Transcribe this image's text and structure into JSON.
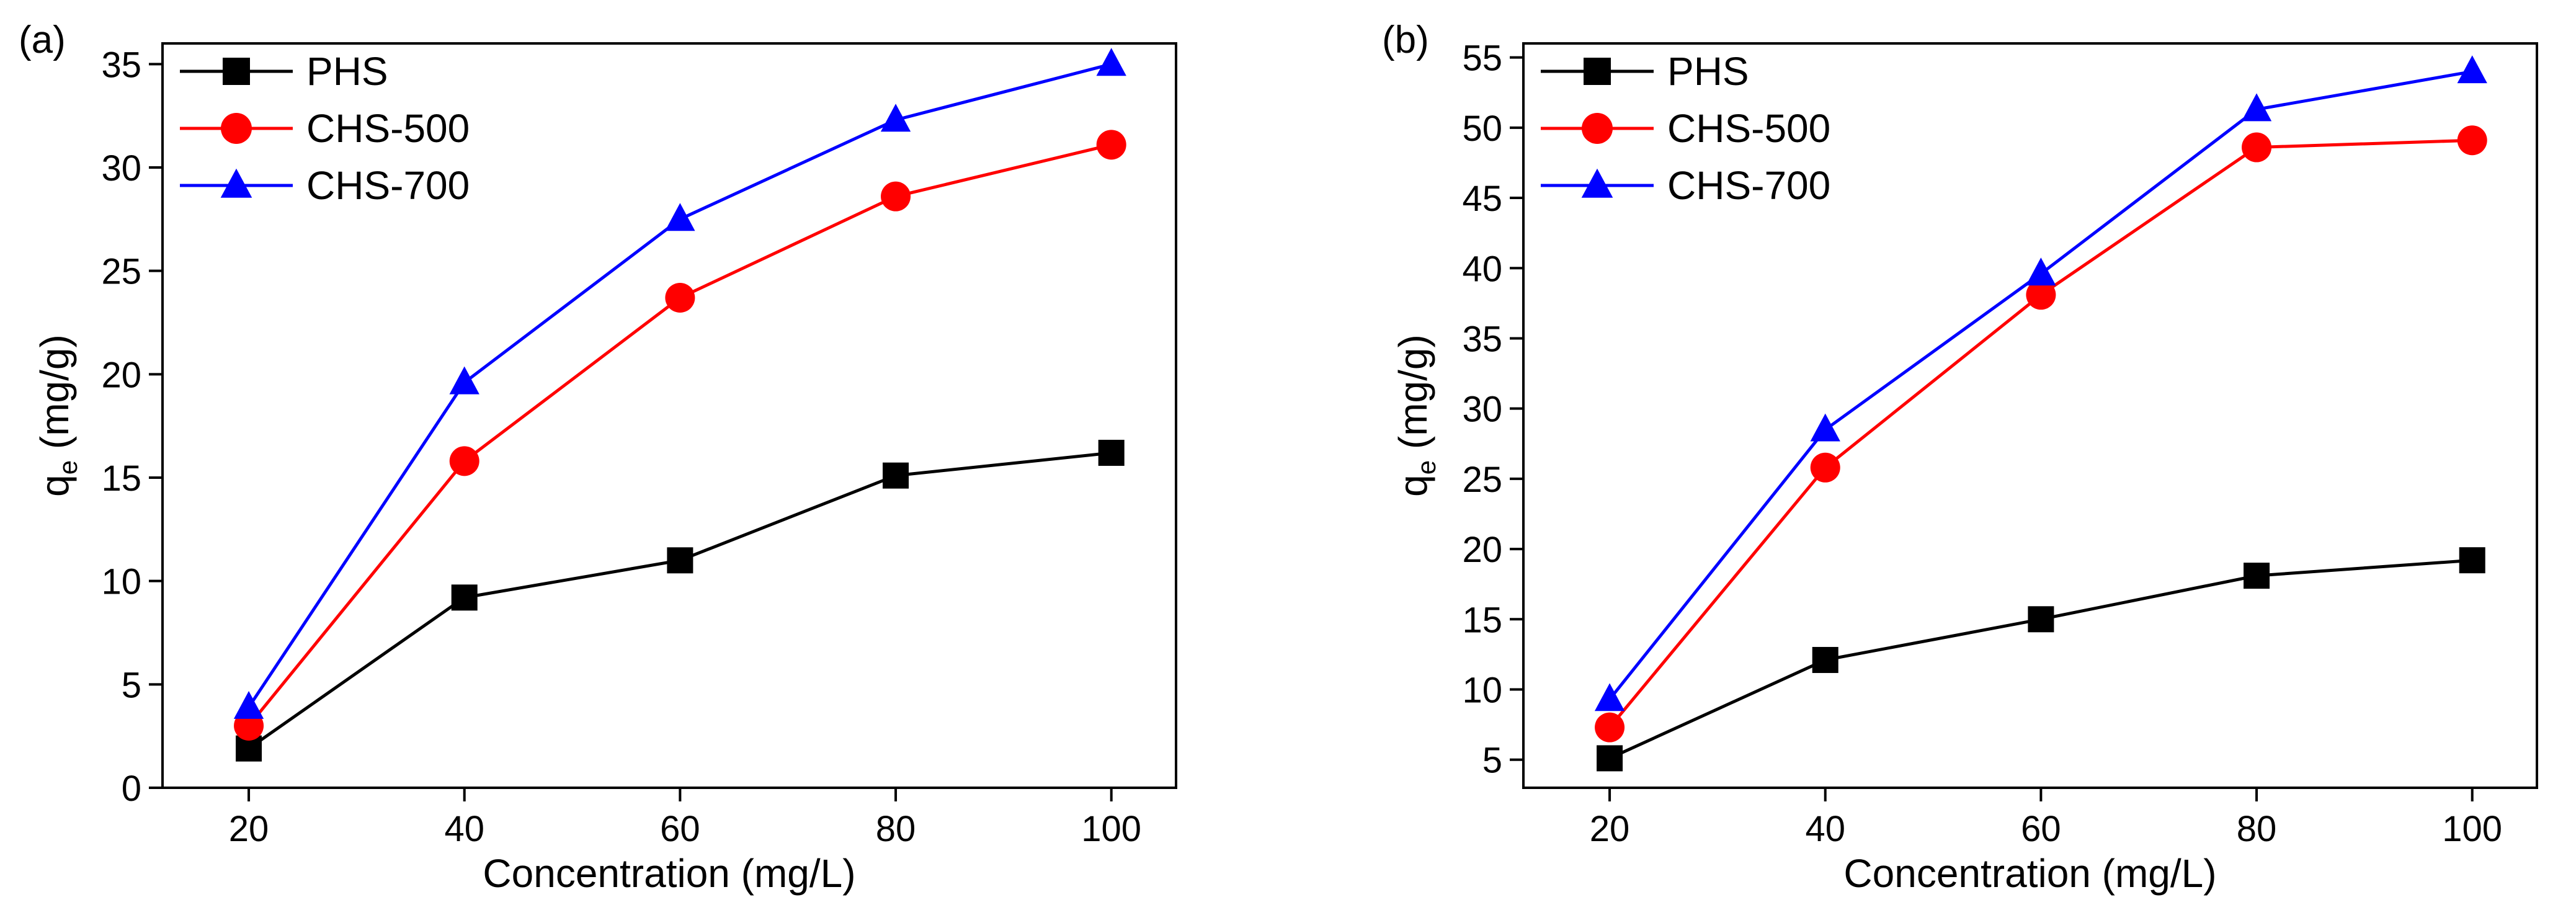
{
  "colors": {
    "PHS": "#000000",
    "CHS-500": "#ff0000",
    "CHS-700": "#0000ff",
    "axis": "#000000",
    "background": "#ffffff"
  },
  "chart_data": [
    {
      "type": "line",
      "panel_label": "(a)",
      "title": "",
      "xlabel": "Concentration (mg/L)",
      "ylabel_main": "q",
      "ylabel_sub": "e",
      "ylabel_unit": " (mg/g)",
      "xlim": [
        12,
        106
      ],
      "ylim": [
        0,
        36
      ],
      "xticks": [
        20,
        40,
        60,
        80,
        100
      ],
      "yticks": [
        0,
        5,
        10,
        15,
        20,
        25,
        30,
        35
      ],
      "legend_position": "top-left",
      "grid": false,
      "x": [
        20,
        40,
        60,
        80,
        100
      ],
      "series": [
        {
          "name": "PHS",
          "marker": "square",
          "color_key": "PHS",
          "values": [
            1.9,
            9.2,
            11.0,
            15.1,
            16.2
          ]
        },
        {
          "name": "CHS-500",
          "marker": "circle",
          "color_key": "CHS-500",
          "values": [
            3.0,
            15.8,
            23.7,
            28.6,
            31.1
          ]
        },
        {
          "name": "CHS-700",
          "marker": "triangle",
          "color_key": "CHS-700",
          "values": [
            3.9,
            19.6,
            27.5,
            32.3,
            35.0
          ]
        }
      ]
    },
    {
      "type": "line",
      "panel_label": "(b)",
      "title": "",
      "xlabel": "Concentration (mg/L)",
      "ylabel_main": "q",
      "ylabel_sub": "e",
      "ylabel_unit": " (mg/g)",
      "xlim": [
        12,
        106
      ],
      "ylim": [
        3,
        56
      ],
      "xticks": [
        20,
        40,
        60,
        80,
        100
      ],
      "yticks": [
        5,
        10,
        15,
        20,
        25,
        30,
        35,
        40,
        45,
        50,
        55
      ],
      "legend_position": "top-left",
      "grid": false,
      "x": [
        20,
        40,
        60,
        80,
        100
      ],
      "series": [
        {
          "name": "PHS",
          "marker": "square",
          "color_key": "PHS",
          "values": [
            5.1,
            12.1,
            15.0,
            18.1,
            19.2
          ]
        },
        {
          "name": "CHS-500",
          "marker": "circle",
          "color_key": "CHS-500",
          "values": [
            7.3,
            25.8,
            38.1,
            48.6,
            49.1
          ]
        },
        {
          "name": "CHS-700",
          "marker": "triangle",
          "color_key": "CHS-700",
          "values": [
            9.3,
            28.5,
            39.6,
            51.3,
            54.0
          ]
        }
      ]
    }
  ]
}
